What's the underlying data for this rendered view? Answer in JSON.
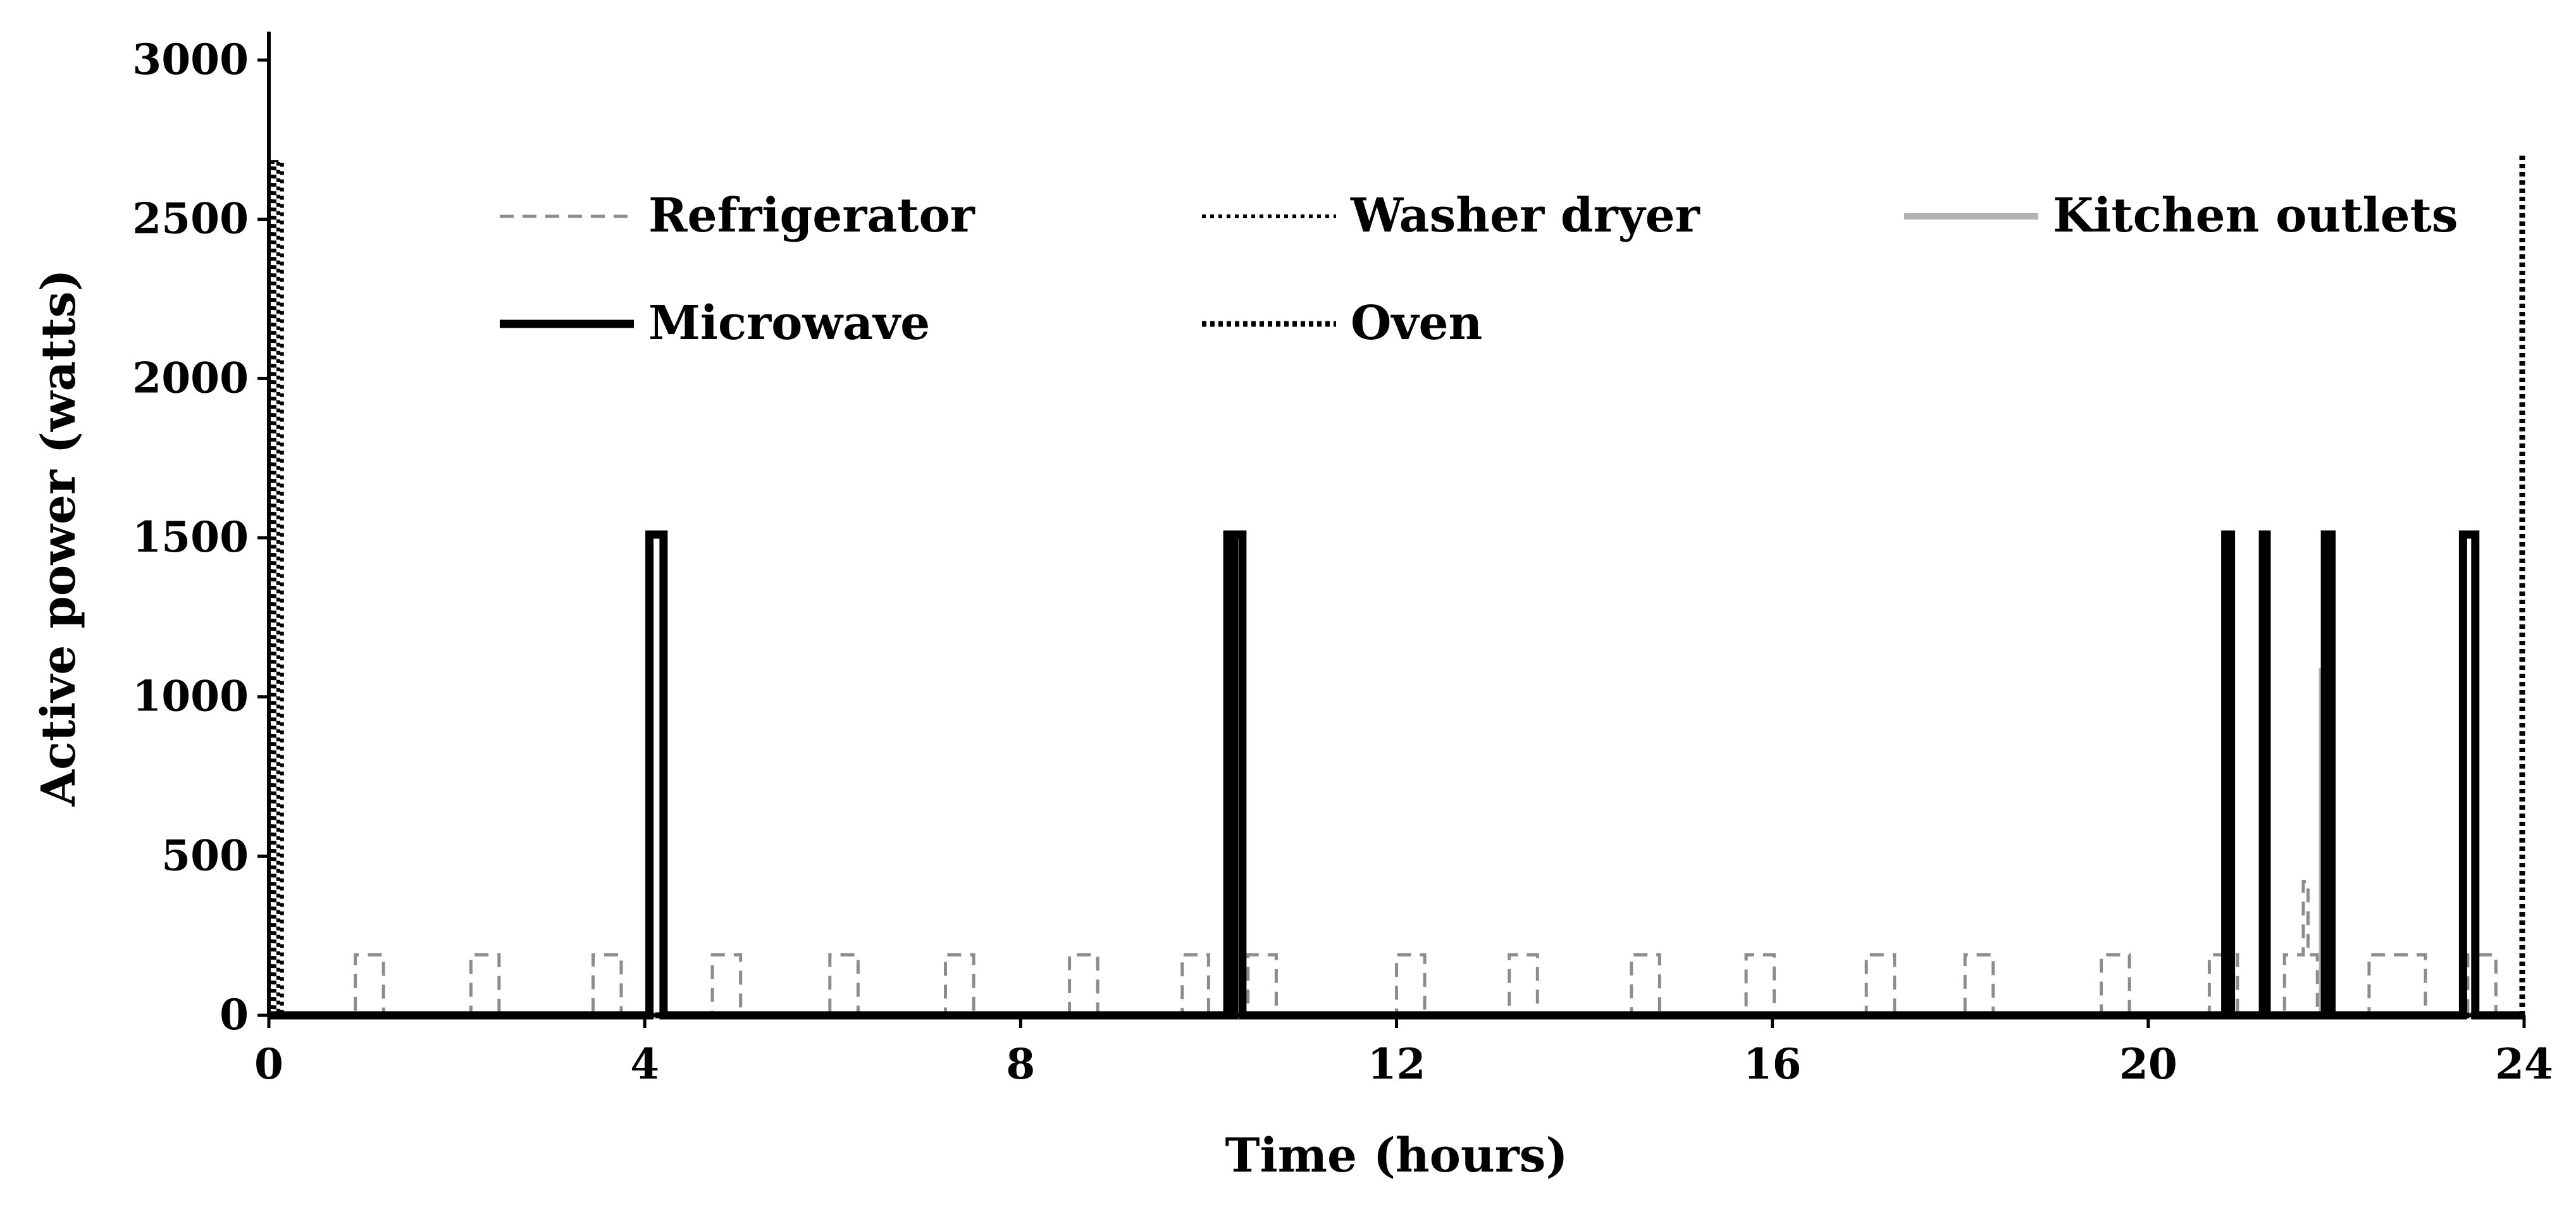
{
  "chart_data": {
    "type": "line",
    "title": "",
    "xlabel": "Time (hours)",
    "ylabel": "Active power (watts)",
    "xlim": [
      0,
      24
    ],
    "ylim": [
      0,
      3000
    ],
    "x_ticks": [
      0,
      4,
      8,
      12,
      16,
      20,
      24
    ],
    "y_ticks": [
      0,
      500,
      1000,
      1500,
      2000,
      2500,
      3000
    ],
    "grid": false,
    "legend_position": "top",
    "series": [
      {
        "name": "Refrigerator",
        "color": "#8c8c8c",
        "style": "dashed",
        "x": [
          0,
          0.92,
          0.92,
          1.22,
          1.22,
          2.15,
          2.15,
          2.45,
          2.45,
          3.45,
          3.45,
          3.75,
          3.75,
          4.72,
          4.72,
          5.02,
          5.02,
          5.97,
          5.97,
          6.27,
          6.27,
          7.2,
          7.2,
          7.5,
          7.5,
          8.52,
          8.52,
          8.82,
          8.82,
          9.72,
          9.72,
          10.0,
          10.0,
          10.42,
          10.42,
          10.72,
          10.72,
          12.0,
          12.0,
          12.3,
          12.3,
          13.2,
          13.2,
          13.5,
          13.5,
          14.5,
          14.5,
          14.8,
          14.8,
          15.72,
          15.72,
          16.02,
          16.02,
          17.0,
          17.0,
          17.3,
          17.3,
          18.05,
          18.05,
          18.35,
          18.35,
          19.5,
          19.5,
          19.8,
          19.8,
          20.65,
          20.65,
          20.95,
          20.95,
          21.45,
          21.45,
          21.65,
          21.65,
          21.7,
          21.7,
          21.8,
          21.8,
          22.35,
          22.35,
          22.95,
          22.95,
          23.4,
          23.4,
          23.7,
          23.7,
          24
        ],
        "y": [
          0,
          0,
          190,
          190,
          0,
          0,
          190,
          190,
          0,
          0,
          190,
          190,
          0,
          0,
          190,
          190,
          0,
          0,
          190,
          190,
          0,
          0,
          190,
          190,
          0,
          0,
          190,
          190,
          0,
          0,
          190,
          190,
          0,
          0,
          190,
          190,
          0,
          0,
          190,
          190,
          0,
          0,
          190,
          190,
          0,
          0,
          190,
          190,
          0,
          0,
          190,
          190,
          0,
          0,
          190,
          190,
          0,
          0,
          190,
          190,
          0,
          0,
          190,
          190,
          0,
          0,
          190,
          190,
          0,
          0,
          190,
          190,
          420,
          420,
          190,
          190,
          0,
          0,
          190,
          190,
          0,
          0,
          190,
          190,
          0,
          0
        ]
      },
      {
        "name": "Washer dryer",
        "color": "#000000",
        "style": "dotted",
        "x": [
          0,
          0.02,
          0.02,
          0.06,
          0.06,
          0.1,
          0.1,
          0.14,
          0.14,
          0.18,
          0.18,
          24
        ],
        "y": [
          0,
          0,
          2680,
          2680,
          0,
          0,
          2680,
          2680,
          0,
          0,
          0,
          0
        ]
      },
      {
        "name": "Kitchen outlets",
        "color": "#b3b3b3",
        "style": "solid",
        "x": [
          0,
          10.2,
          10.2,
          10.22,
          10.22,
          21.85,
          21.85,
          21.9,
          21.9,
          24
        ],
        "y": [
          0,
          0,
          1500,
          1500,
          0,
          0,
          1080,
          1080,
          0,
          0
        ]
      },
      {
        "name": "Microwave",
        "color": "#000000",
        "style": "solid",
        "x": [
          0,
          4.05,
          4.05,
          4.2,
          4.2,
          10.2,
          10.2,
          10.24,
          10.24,
          10.27,
          10.27,
          10.36,
          10.36,
          20.82,
          20.82,
          20.88,
          20.88,
          21.22,
          21.22,
          21.26,
          21.26,
          21.88,
          21.88,
          21.95,
          21.95,
          23.35,
          23.35,
          23.48,
          23.48,
          24
        ],
        "y": [
          0,
          0,
          1510,
          1510,
          0,
          0,
          1510,
          1510,
          0,
          0,
          1510,
          1510,
          0,
          0,
          1510,
          1510,
          0,
          0,
          1510,
          1510,
          0,
          0,
          1510,
          1510,
          0,
          0,
          1510,
          1510,
          0,
          0
        ]
      },
      {
        "name": "Oven",
        "color": "#000000",
        "style": "dotted-heavy",
        "x": [
          0,
          23.98,
          23.98,
          24
        ],
        "y": [
          0,
          0,
          2700,
          2700
        ]
      }
    ]
  }
}
